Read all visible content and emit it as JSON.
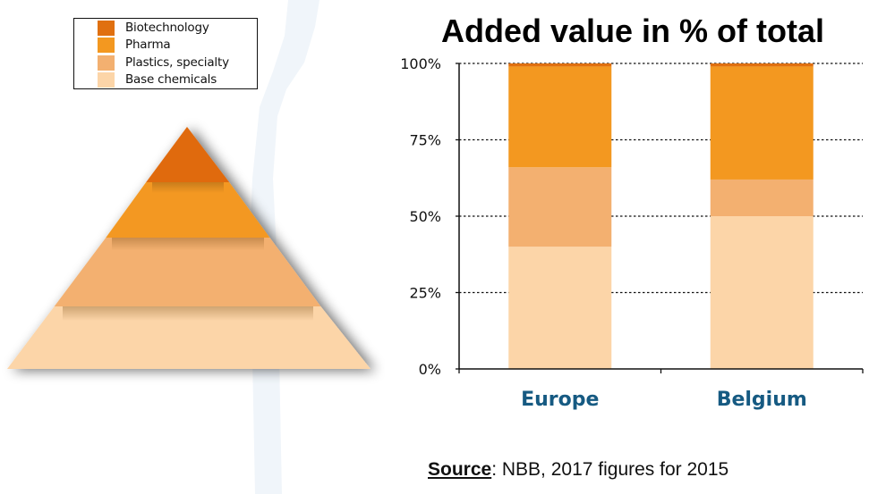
{
  "legend": {
    "items": [
      {
        "label": "Biotechnology",
        "color": "#E07010"
      },
      {
        "label": "Pharma",
        "color": "#F39820"
      },
      {
        "label": "Plastics, specialty",
        "color": "#F3B070"
      },
      {
        "label": "Base chemicals",
        "color": "#FCD5A8"
      }
    ]
  },
  "pyramid": {
    "layers_top_to_bottom": [
      "Biotechnology",
      "Pharma",
      "Plastics, specialty",
      "Base chemicals"
    ]
  },
  "source": {
    "label": "Source",
    "text": ": NBB, 2017 figures for 2015"
  },
  "colors": {
    "category_label": "#165A82",
    "axis": "#000000",
    "ribbon": "#EEF4FA"
  },
  "chart_data": {
    "type": "bar",
    "stacked": true,
    "title": "Added value in % of total",
    "xlabel": "",
    "ylabel": "",
    "categories": [
      "Europe",
      "Belgium"
    ],
    "series": [
      {
        "name": "Base chemicals",
        "color": "#FCD5A8",
        "values": [
          40,
          50
        ]
      },
      {
        "name": "Plastics, specialty",
        "color": "#F3B070",
        "values": [
          26,
          12
        ]
      },
      {
        "name": "Pharma",
        "color": "#F39820",
        "values": [
          33,
          37
        ]
      },
      {
        "name": "Biotechnology",
        "color": "#E07010",
        "values": [
          1,
          1
        ]
      }
    ],
    "ylim": [
      0,
      100
    ],
    "yticks": [
      "0%",
      "25%",
      "50%",
      "75%",
      "100%"
    ],
    "ytick_values": [
      0,
      25,
      50,
      75,
      100
    ],
    "grid": true,
    "grid_style": "dotted",
    "legend": "top-left"
  }
}
